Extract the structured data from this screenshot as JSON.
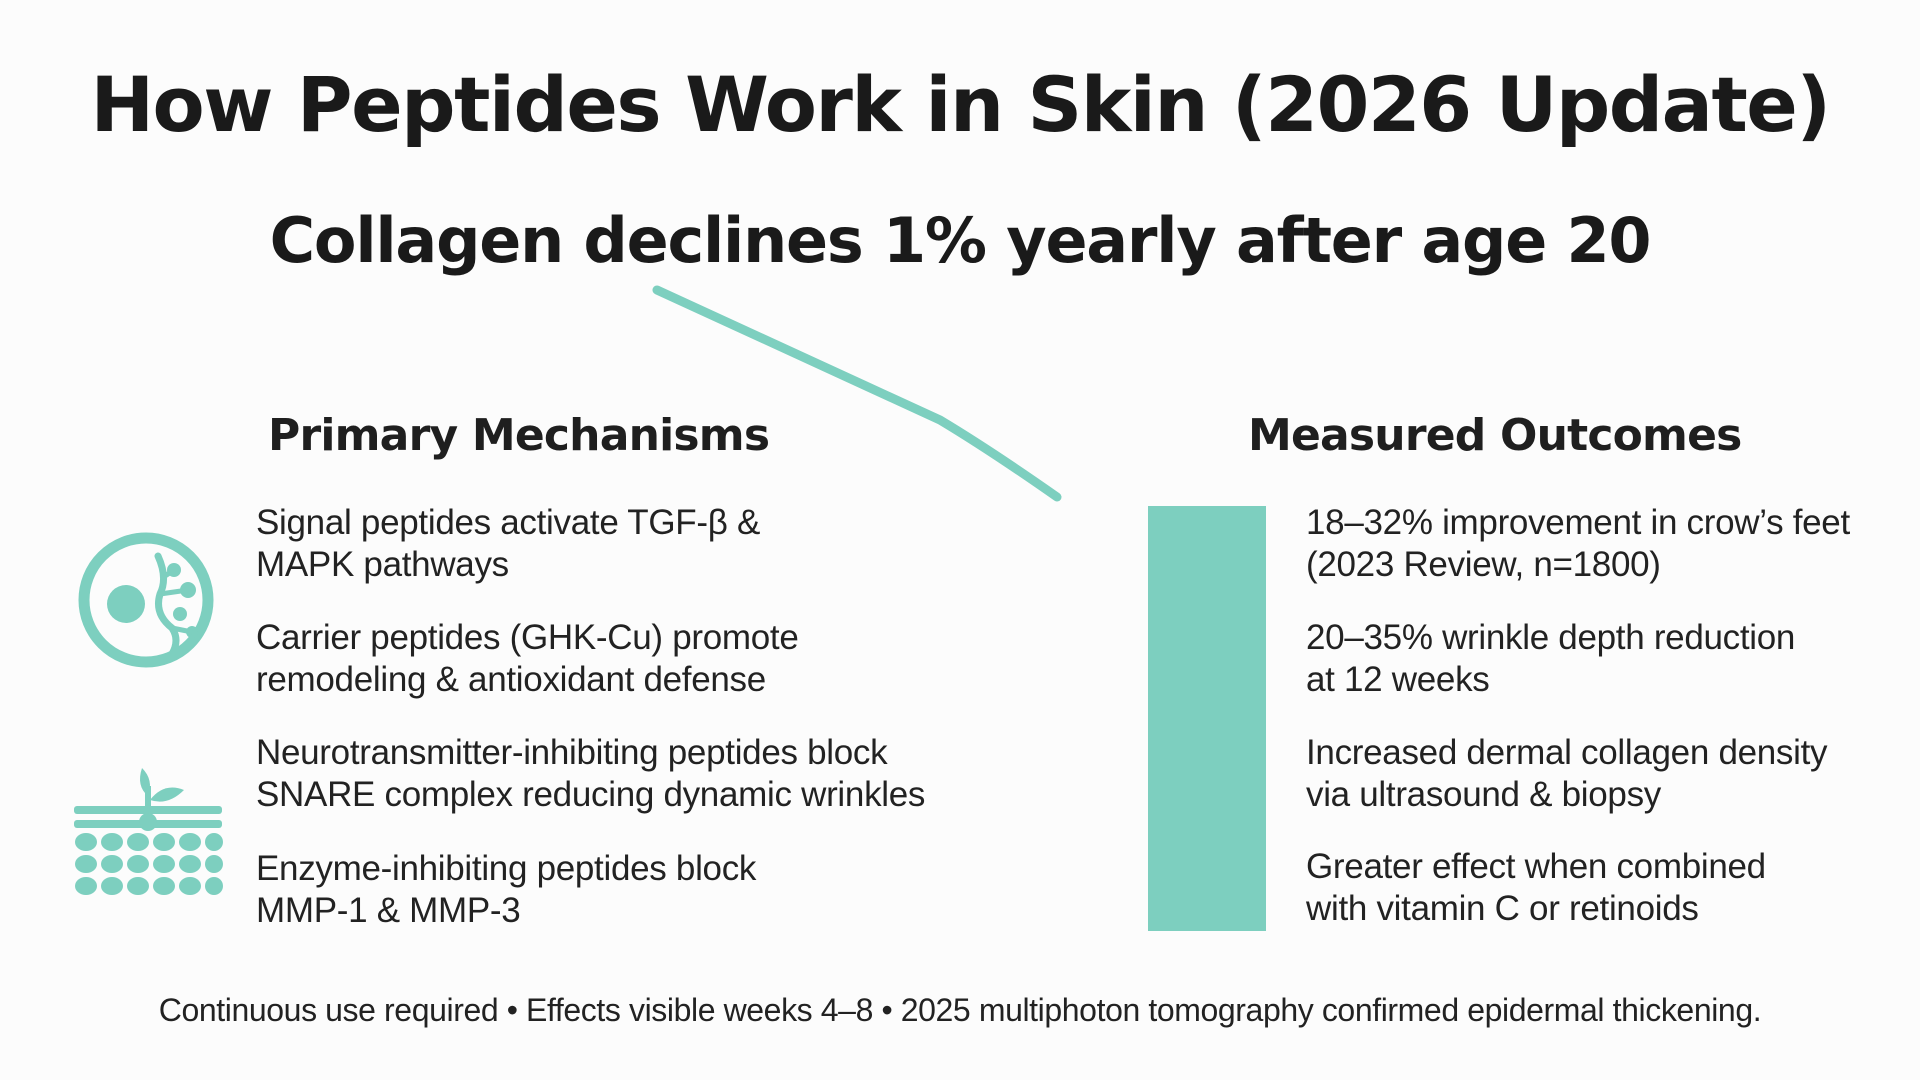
{
  "title": "How Peptides Work in Skin (2026 Update)",
  "subtitle": "Collagen declines 1% yearly after age 20",
  "accent_color": "#7dcfbf",
  "mechanisms": {
    "heading": "Primary Mechanisms",
    "icons": [
      "cell-icon",
      "skin-layers-icon"
    ],
    "items": [
      {
        "line1": "Signal peptides activate TGF-β &",
        "line2": "MAPK pathways"
      },
      {
        "line1": "Carrier peptides (GHK-Cu) promote",
        "line2": "remodeling & antioxidant defense"
      },
      {
        "line1": "Neurotransmitter-inhibiting peptides block",
        "line2": "SNARE complex reducing dynamic wrinkles"
      },
      {
        "line1": "Enzyme-inhibiting peptides block",
        "line2": "MMP-1 & MMP-3"
      }
    ]
  },
  "outcomes": {
    "heading": "Measured Outcomes",
    "items": [
      {
        "line1": "18–32% improvement in crow’s feet",
        "line2": "(2023 Review, n=1800)"
      },
      {
        "line1": "20–35% wrinkle depth reduction",
        "line2": "at 12 weeks"
      },
      {
        "line1": "Increased dermal collagen density",
        "line2": "via ultrasound & biopsy"
      },
      {
        "line1": "Greater effect when combined",
        "line2": "with vitamin C or retinoids"
      }
    ]
  },
  "footer": "Continuous use required • Effects visible weeks 4–8 • 2025 multiphoton tomography confirmed epidermal thickening."
}
